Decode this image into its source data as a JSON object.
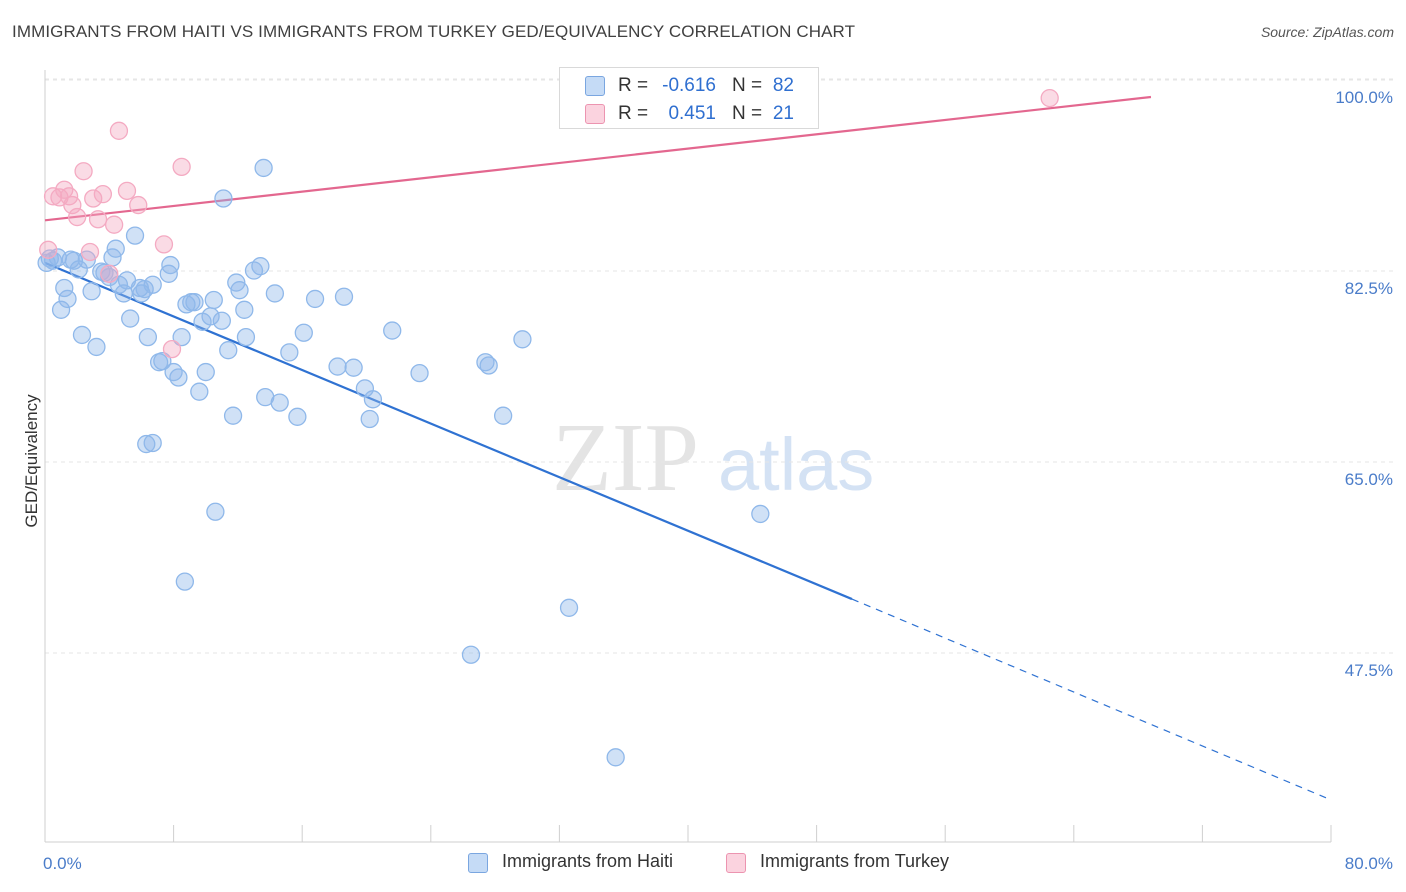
{
  "title": "IMMIGRANTS FROM HAITI VS IMMIGRANTS FROM TURKEY GED/EQUIVALENCY CORRELATION CHART",
  "source": "Source: ZipAtlas.com",
  "watermark": {
    "zip": "ZIP",
    "atlas": "atlas"
  },
  "legend_top": [
    {
      "r_label": "R =",
      "r_value": "-0.616",
      "n_label": "N =",
      "n_value": "82",
      "color": "#a8c8f0",
      "border": "#7aa6e0"
    },
    {
      "r_label": "R =",
      "r_value": "0.451",
      "n_label": "N =",
      "n_value": "21",
      "color": "#f8c0d0",
      "border": "#ec94b0"
    }
  ],
  "legend_bottom": [
    {
      "label": "Immigrants from Haiti",
      "color": "#a8c8f0",
      "border": "#7aa6e0"
    },
    {
      "label": "Immigrants from Turkey",
      "color": "#f8c0d0",
      "border": "#ec94b0"
    }
  ],
  "chart_data": {
    "type": "scatter",
    "title": "IMMIGRANTS FROM HAITI VS IMMIGRANTS FROM TURKEY GED/EQUIVALENCY CORRELATION CHART",
    "xlabel": "",
    "ylabel": "GED/Equivalency",
    "xlim": [
      0,
      80
    ],
    "ylim": [
      32,
      101.5
    ],
    "x_tick_labels": [
      "0.0%",
      "80.0%"
    ],
    "y_ticks": [
      {
        "value": 47.5,
        "label": "47.5%"
      },
      {
        "value": 65.0,
        "label": "65.0%"
      },
      {
        "value": 82.5,
        "label": "82.5%"
      },
      {
        "value": 100.0,
        "label": "100.0%"
      }
    ],
    "series": [
      {
        "name": "Immigrants from Haiti",
        "color": "#8fb8ea",
        "line_color": "#2f72d2",
        "trend": {
          "x0": 0.0,
          "y0": 84.8,
          "x1": 50.2,
          "y1": 54.0,
          "dash_to_x": 80.0,
          "dash_to_y": 35.6
        },
        "points": [
          [
            0.3,
            85.2
          ],
          [
            0.5,
            85.0
          ],
          [
            0.8,
            85.3
          ],
          [
            1.0,
            80.5
          ],
          [
            1.2,
            82.5
          ],
          [
            1.4,
            81.5
          ],
          [
            1.8,
            85.0
          ],
          [
            2.1,
            84.2
          ],
          [
            2.3,
            78.2
          ],
          [
            2.6,
            85.1
          ],
          [
            2.9,
            82.2
          ],
          [
            3.2,
            77.1
          ],
          [
            3.5,
            84.0
          ],
          [
            4.0,
            83.5
          ],
          [
            4.2,
            85.3
          ],
          [
            4.4,
            86.1
          ],
          [
            4.6,
            82.8
          ],
          [
            4.9,
            82.0
          ],
          [
            5.1,
            83.2
          ],
          [
            5.3,
            79.7
          ],
          [
            5.6,
            87.3
          ],
          [
            5.9,
            82.5
          ],
          [
            6.2,
            82.4
          ],
          [
            6.4,
            78.0
          ],
          [
            6.7,
            82.8
          ],
          [
            6.3,
            68.2
          ],
          [
            6.7,
            68.3
          ],
          [
            7.1,
            75.7
          ],
          [
            7.3,
            75.8
          ],
          [
            7.7,
            83.8
          ],
          [
            7.8,
            84.6
          ],
          [
            8.0,
            74.8
          ],
          [
            8.3,
            74.3
          ],
          [
            8.5,
            78.0
          ],
          [
            8.7,
            55.6
          ],
          [
            8.8,
            81.0
          ],
          [
            9.1,
            81.2
          ],
          [
            9.3,
            81.2
          ],
          [
            9.6,
            73.0
          ],
          [
            9.8,
            79.4
          ],
          [
            10.0,
            74.8
          ],
          [
            10.3,
            79.9
          ],
          [
            10.5,
            81.4
          ],
          [
            10.6,
            62.0
          ],
          [
            11.0,
            79.5
          ],
          [
            11.1,
            90.7
          ],
          [
            11.4,
            76.8
          ],
          [
            11.7,
            70.8
          ],
          [
            11.9,
            83.0
          ],
          [
            12.1,
            82.3
          ],
          [
            12.4,
            80.5
          ],
          [
            12.5,
            78.0
          ],
          [
            13.0,
            84.1
          ],
          [
            13.4,
            84.5
          ],
          [
            13.6,
            93.5
          ],
          [
            13.7,
            72.5
          ],
          [
            14.3,
            82.0
          ],
          [
            14.6,
            72.0
          ],
          [
            15.2,
            76.6
          ],
          [
            15.7,
            70.7
          ],
          [
            16.1,
            78.4
          ],
          [
            16.8,
            81.5
          ],
          [
            18.2,
            75.3
          ],
          [
            18.6,
            81.7
          ],
          [
            19.2,
            75.2
          ],
          [
            19.9,
            73.3
          ],
          [
            20.2,
            70.5
          ],
          [
            20.4,
            72.3
          ],
          [
            21.6,
            78.6
          ],
          [
            23.3,
            74.7
          ],
          [
            26.5,
            48.9
          ],
          [
            27.4,
            75.7
          ],
          [
            27.6,
            75.4
          ],
          [
            28.5,
            70.8
          ],
          [
            29.7,
            77.8
          ],
          [
            32.6,
            53.2
          ],
          [
            35.5,
            39.5
          ],
          [
            44.5,
            61.8
          ],
          [
            0.1,
            84.8
          ],
          [
            1.6,
            85.1
          ],
          [
            3.7,
            83.9
          ],
          [
            6.0,
            82.0
          ]
        ]
      },
      {
        "name": "Immigrants from Turkey",
        "color": "#f4aac2",
        "line_color": "#e3678f",
        "trend": {
          "x0": 0.0,
          "y0": 88.7,
          "x1": 68.8,
          "y1": 100.0
        },
        "points": [
          [
            0.2,
            86.0
          ],
          [
            0.5,
            90.9
          ],
          [
            0.9,
            90.8
          ],
          [
            1.2,
            91.5
          ],
          [
            1.5,
            90.9
          ],
          [
            1.7,
            90.1
          ],
          [
            2.0,
            89.0
          ],
          [
            2.4,
            93.2
          ],
          [
            2.8,
            85.8
          ],
          [
            3.0,
            90.7
          ],
          [
            3.3,
            88.8
          ],
          [
            3.6,
            91.1
          ],
          [
            4.0,
            83.8
          ],
          [
            4.3,
            88.3
          ],
          [
            4.6,
            96.9
          ],
          [
            5.1,
            91.4
          ],
          [
            5.8,
            90.1
          ],
          [
            7.4,
            86.5
          ],
          [
            7.9,
            76.9
          ],
          [
            8.5,
            93.6
          ],
          [
            62.5,
            99.9
          ]
        ]
      }
    ]
  }
}
